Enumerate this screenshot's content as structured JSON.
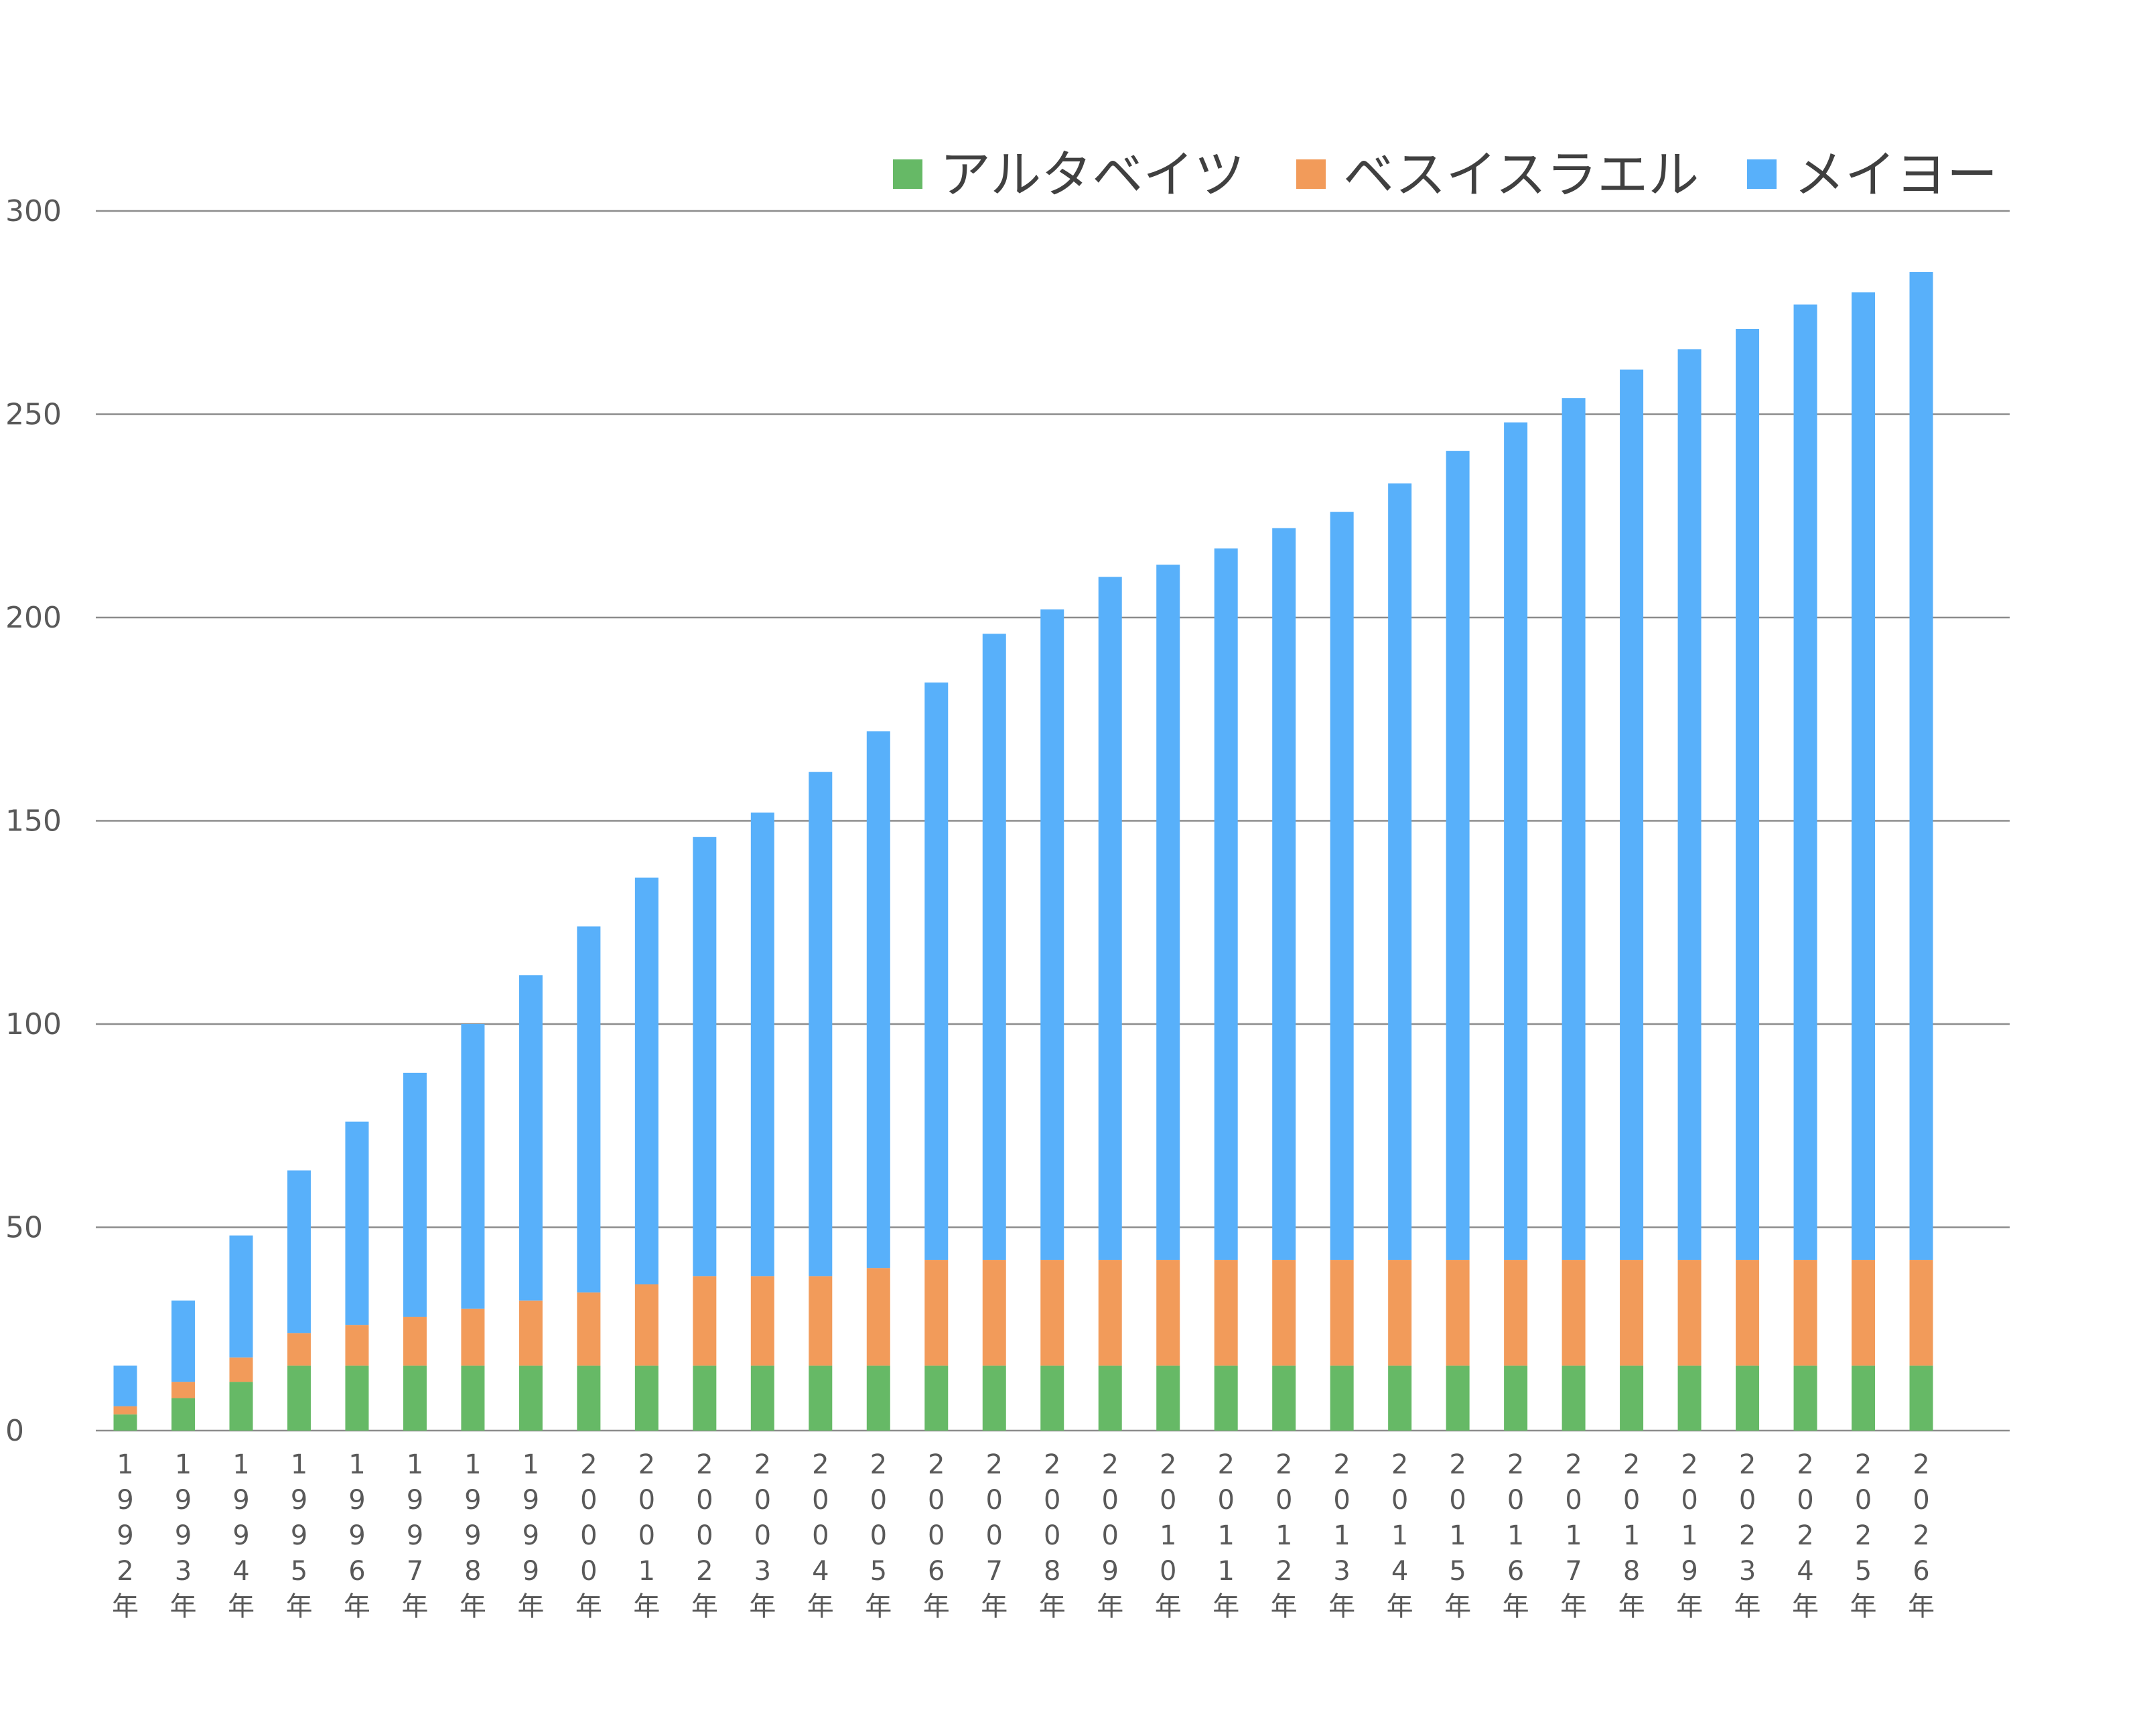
{
  "chart_data": {
    "type": "bar",
    "stacked": true,
    "categories": [
      "1992年",
      "1993年",
      "1994年",
      "1995年",
      "1996年",
      "1997年",
      "1998年",
      "1999年",
      "2000年",
      "2001年",
      "2002年",
      "2003年",
      "2004年",
      "2005年",
      "2006年",
      "2007年",
      "2008年",
      "2009年",
      "2010年",
      "2011年",
      "2012年",
      "2013年",
      "2014年",
      "2015年",
      "2016年",
      "2017年",
      "2018年",
      "2019年",
      "2023年",
      "2024年",
      "2025年",
      "2026年"
    ],
    "series": [
      {
        "name": "アルタベイツ",
        "color": "#66b966",
        "values": [
          4,
          8,
          12,
          16,
          16,
          16,
          16,
          16,
          16,
          16,
          16,
          16,
          16,
          16,
          16,
          16,
          16,
          16,
          16,
          16,
          16,
          16,
          16,
          16,
          16,
          16,
          16,
          16,
          16,
          16,
          16,
          16
        ]
      },
      {
        "name": "ベスイスラエル",
        "color": "#f29b5a",
        "values": [
          2,
          4,
          6,
          8,
          10,
          12,
          14,
          16,
          18,
          20,
          22,
          22,
          22,
          24,
          26,
          26,
          26,
          26,
          26,
          26,
          26,
          26,
          26,
          26,
          26,
          26,
          26,
          26,
          26,
          26,
          26,
          26
        ]
      },
      {
        "name": "メイヨー",
        "color": "#58b0fa",
        "values": [
          10,
          20,
          30,
          40,
          50,
          60,
          70,
          80,
          90,
          100,
          108,
          114,
          124,
          132,
          142,
          154,
          160,
          168,
          171,
          175,
          180,
          184,
          191,
          199,
          206,
          212,
          219,
          224,
          229,
          235,
          238,
          243
        ]
      }
    ],
    "ylim": [
      0,
      300
    ],
    "yticks": [
      0,
      50,
      100,
      150,
      200,
      250,
      300
    ],
    "grid": true,
    "legend_position": "top"
  }
}
